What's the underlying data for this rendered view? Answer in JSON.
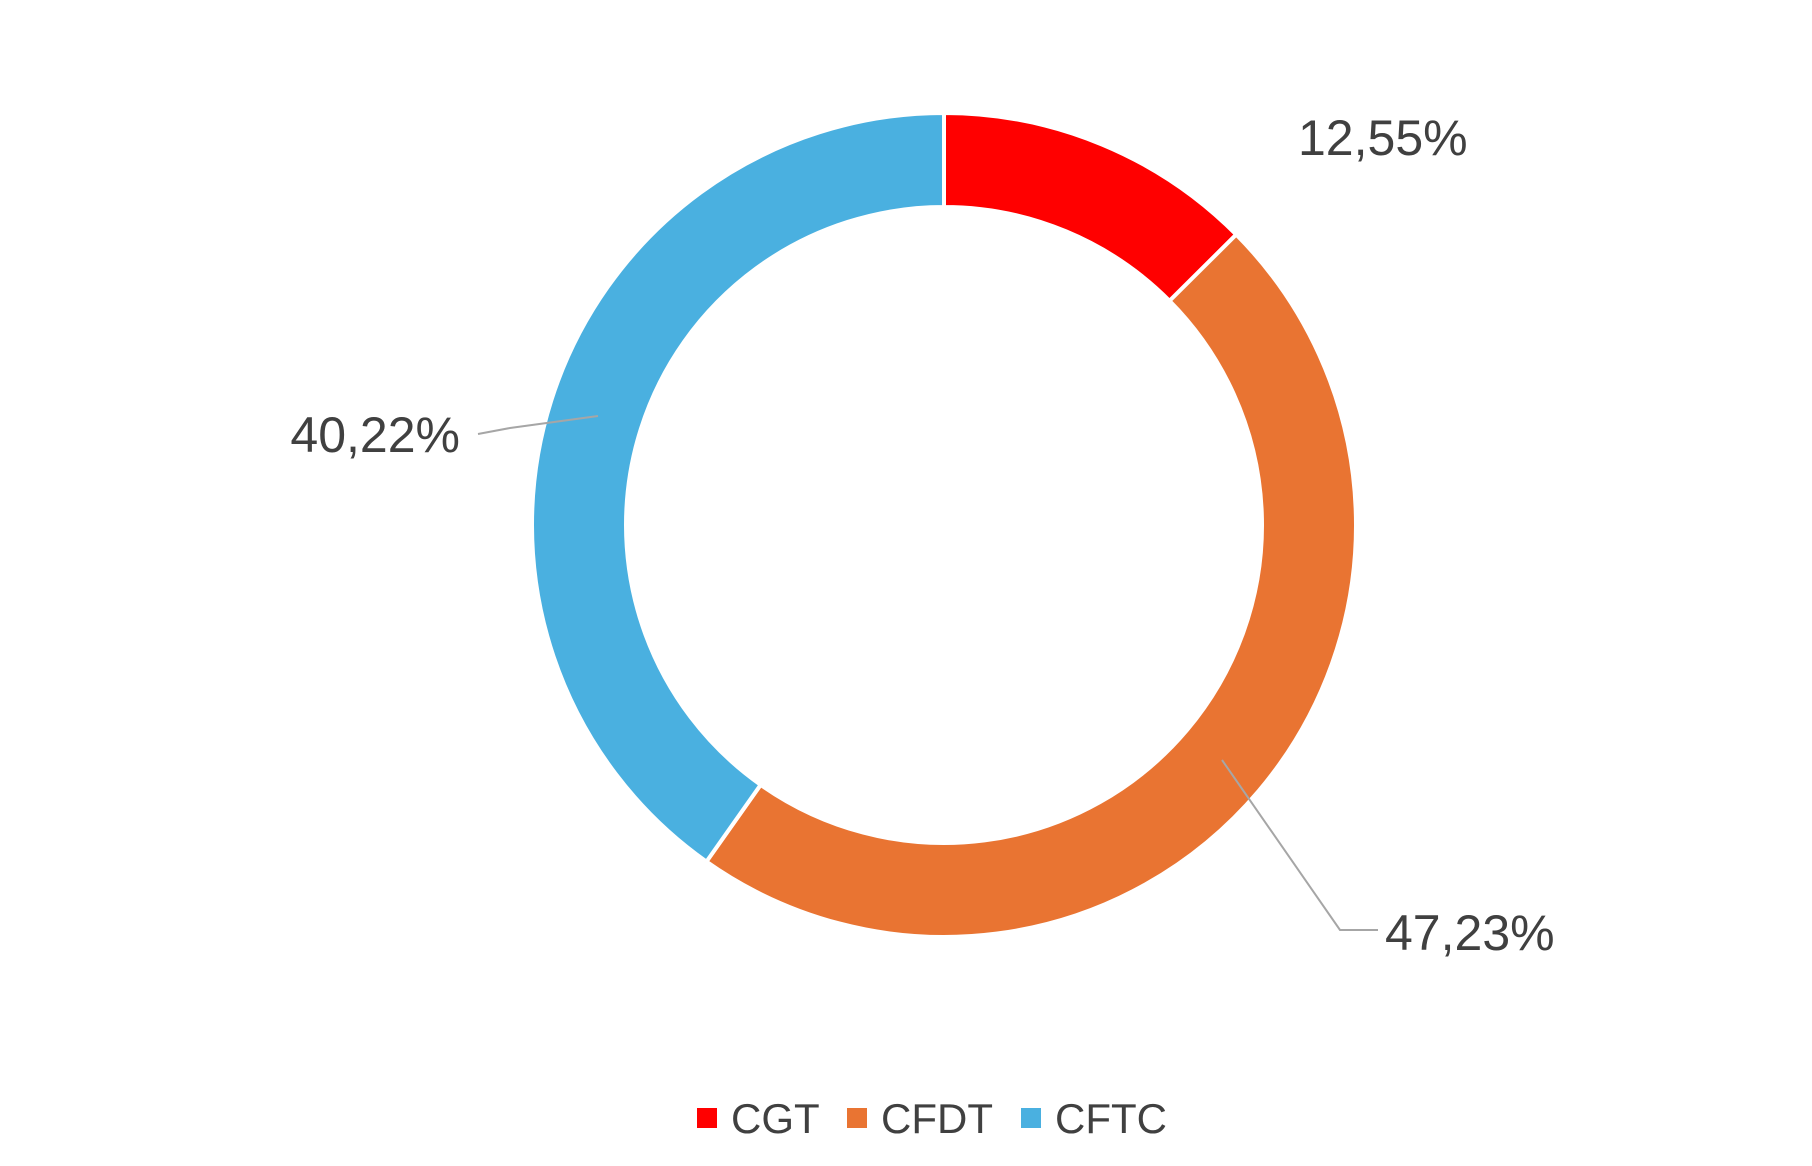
{
  "chart_data": {
    "type": "pie",
    "variant": "doughnut",
    "categories": [
      "CGT",
      "CFDT",
      "CFTC"
    ],
    "values": [
      12.55,
      47.23,
      40.22
    ],
    "data_labels": [
      "12,55%",
      "47,23%",
      "40,22%"
    ],
    "colors": [
      "#ff0000",
      "#e97432",
      "#4ab0e0"
    ],
    "legend": {
      "position": "bottom",
      "entries": [
        "CGT",
        "CFDT",
        "CFTC"
      ]
    },
    "title": ""
  }
}
